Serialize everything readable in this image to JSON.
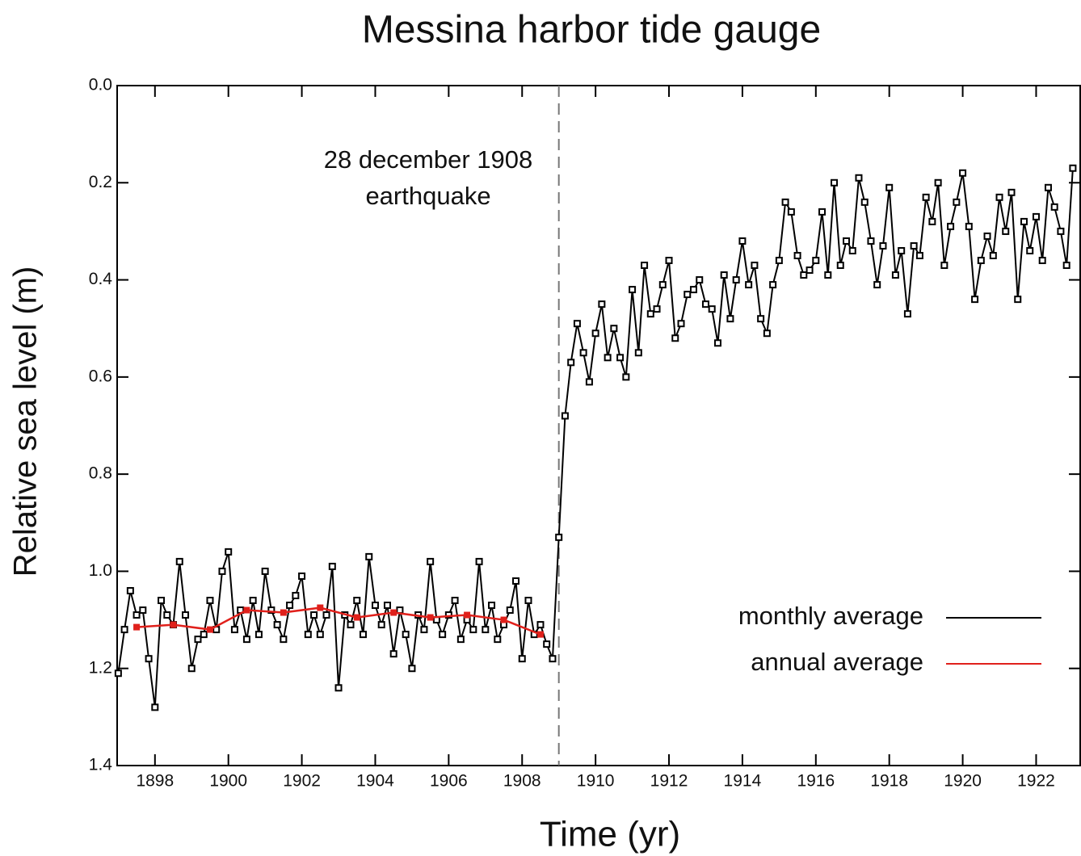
{
  "chart_data": {
    "type": "line",
    "title": "Messina harbor tide gauge",
    "x_label": "Time (yr)",
    "y_label": "Relative sea level (m)",
    "annotation": [
      "28 december 1908",
      "earthquake"
    ],
    "vline_x": 1909,
    "xlim": [
      1896.97,
      1923.2
    ],
    "xticks": [
      1898,
      1900,
      1902,
      1904,
      1906,
      1908,
      1910,
      1912,
      1914,
      1916,
      1918,
      1920,
      1922
    ],
    "ylim": [
      1.4,
      0
    ],
    "yticks": [
      {
        "value": 0,
        "label": "0.0"
      },
      0.2,
      0.4,
      0.6,
      0.8,
      {
        "value": 1,
        "label": "1.0"
      },
      1.2,
      1.4
    ],
    "y_inverted": true,
    "legend": "lower right",
    "series": [
      {
        "name": "monthly average",
        "color": "#000000",
        "x": [
          1897.0,
          1897.17,
          1897.33,
          1897.5,
          1897.67,
          1897.83,
          1898.0,
          1898.17,
          1898.33,
          1898.5,
          1898.67,
          1898.83,
          1899.0,
          1899.17,
          1899.33,
          1899.5,
          1899.67,
          1899.83,
          1900.0,
          1900.17,
          1900.33,
          1900.5,
          1900.67,
          1900.83,
          1901.0,
          1901.17,
          1901.33,
          1901.5,
          1901.67,
          1901.83,
          1902.0,
          1902.17,
          1902.33,
          1902.5,
          1902.67,
          1902.83,
          1903.0,
          1903.17,
          1903.33,
          1903.5,
          1903.67,
          1903.83,
          1904.0,
          1904.17,
          1904.33,
          1904.5,
          1904.67,
          1904.83,
          1905.0,
          1905.17,
          1905.33,
          1905.5,
          1905.67,
          1905.83,
          1906.0,
          1906.17,
          1906.33,
          1906.5,
          1906.67,
          1906.83,
          1907.0,
          1907.17,
          1907.33,
          1907.5,
          1907.67,
          1907.83,
          1908.0,
          1908.17,
          1908.33,
          1908.5,
          1908.67,
          1908.83,
          1909.0,
          1909.17,
          1909.33,
          1909.5,
          1909.67,
          1909.83,
          1910.0,
          1910.17,
          1910.33,
          1910.5,
          1910.67,
          1910.83,
          1911.0,
          1911.17,
          1911.33,
          1911.5,
          1911.67,
          1911.83,
          1912.0,
          1912.17,
          1912.33,
          1912.5,
          1912.67,
          1912.83,
          1913.0,
          1913.17,
          1913.33,
          1913.5,
          1913.67,
          1913.83,
          1914.0,
          1914.17,
          1914.33,
          1914.5,
          1914.67,
          1914.83,
          1915.0,
          1915.17,
          1915.33,
          1915.5,
          1915.67,
          1915.83,
          1916.0,
          1916.17,
          1916.33,
          1916.5,
          1916.67,
          1916.83,
          1917.0,
          1917.17,
          1917.33,
          1917.5,
          1917.67,
          1917.83,
          1918.0,
          1918.17,
          1918.33,
          1918.5,
          1918.67,
          1918.83,
          1919.0,
          1919.17,
          1919.33,
          1919.5,
          1919.67,
          1919.83,
          1920.0,
          1920.17,
          1920.33,
          1920.5,
          1920.67,
          1920.83,
          1921.0,
          1921.17,
          1921.33,
          1921.5,
          1921.67,
          1921.83,
          1922.0,
          1922.17,
          1922.33,
          1922.5,
          1922.67,
          1922.83,
          1923.0
        ],
        "values": [
          1.21,
          1.12,
          1.04,
          1.09,
          1.08,
          1.18,
          1.28,
          1.06,
          1.09,
          1.11,
          0.98,
          1.09,
          1.2,
          1.14,
          1.13,
          1.06,
          1.12,
          1.0,
          0.96,
          1.12,
          1.08,
          1.14,
          1.06,
          1.13,
          1.0,
          1.08,
          1.11,
          1.14,
          1.07,
          1.05,
          1.01,
          1.13,
          1.09,
          1.13,
          1.09,
          0.99,
          1.24,
          1.09,
          1.11,
          1.06,
          1.13,
          0.97,
          1.07,
          1.11,
          1.07,
          1.17,
          1.08,
          1.13,
          1.2,
          1.09,
          1.12,
          0.98,
          1.1,
          1.13,
          1.09,
          1.06,
          1.14,
          1.1,
          1.12,
          0.98,
          1.12,
          1.07,
          1.14,
          1.11,
          1.08,
          1.02,
          1.18,
          1.06,
          1.13,
          1.11,
          1.15,
          1.18,
          0.93,
          0.68,
          0.57,
          0.49,
          0.55,
          0.61,
          0.51,
          0.45,
          0.56,
          0.5,
          0.56,
          0.6,
          0.42,
          0.55,
          0.37,
          0.47,
          0.46,
          0.41,
          0.36,
          0.52,
          0.49,
          0.43,
          0.42,
          0.4,
          0.45,
          0.46,
          0.53,
          0.39,
          0.48,
          0.4,
          0.32,
          0.41,
          0.37,
          0.48,
          0.51,
          0.41,
          0.36,
          0.24,
          0.26,
          0.35,
          0.39,
          0.38,
          0.36,
          0.26,
          0.39,
          0.2,
          0.37,
          0.32,
          0.34,
          0.19,
          0.24,
          0.32,
          0.41,
          0.33,
          0.21,
          0.39,
          0.34,
          0.47,
          0.33,
          0.35,
          0.23,
          0.28,
          0.2,
          0.37,
          0.29,
          0.24,
          0.18,
          0.29,
          0.44,
          0.36,
          0.31,
          0.35,
          0.23,
          0.3,
          0.22,
          0.44,
          0.28,
          0.34,
          0.27,
          0.36,
          0.21,
          0.25,
          0.3,
          0.37,
          0.17
        ]
      },
      {
        "name": "annual average",
        "color": "#e0201b",
        "x": [
          1897.5,
          1898.5,
          1899.5,
          1900.5,
          1901.5,
          1902.5,
          1903.5,
          1904.5,
          1905.5,
          1906.5,
          1907.5,
          1908.5
        ],
        "values": [
          1.115,
          1.11,
          1.12,
          1.08,
          1.085,
          1.075,
          1.095,
          1.085,
          1.095,
          1.09,
          1.1,
          1.13
        ]
      }
    ]
  }
}
